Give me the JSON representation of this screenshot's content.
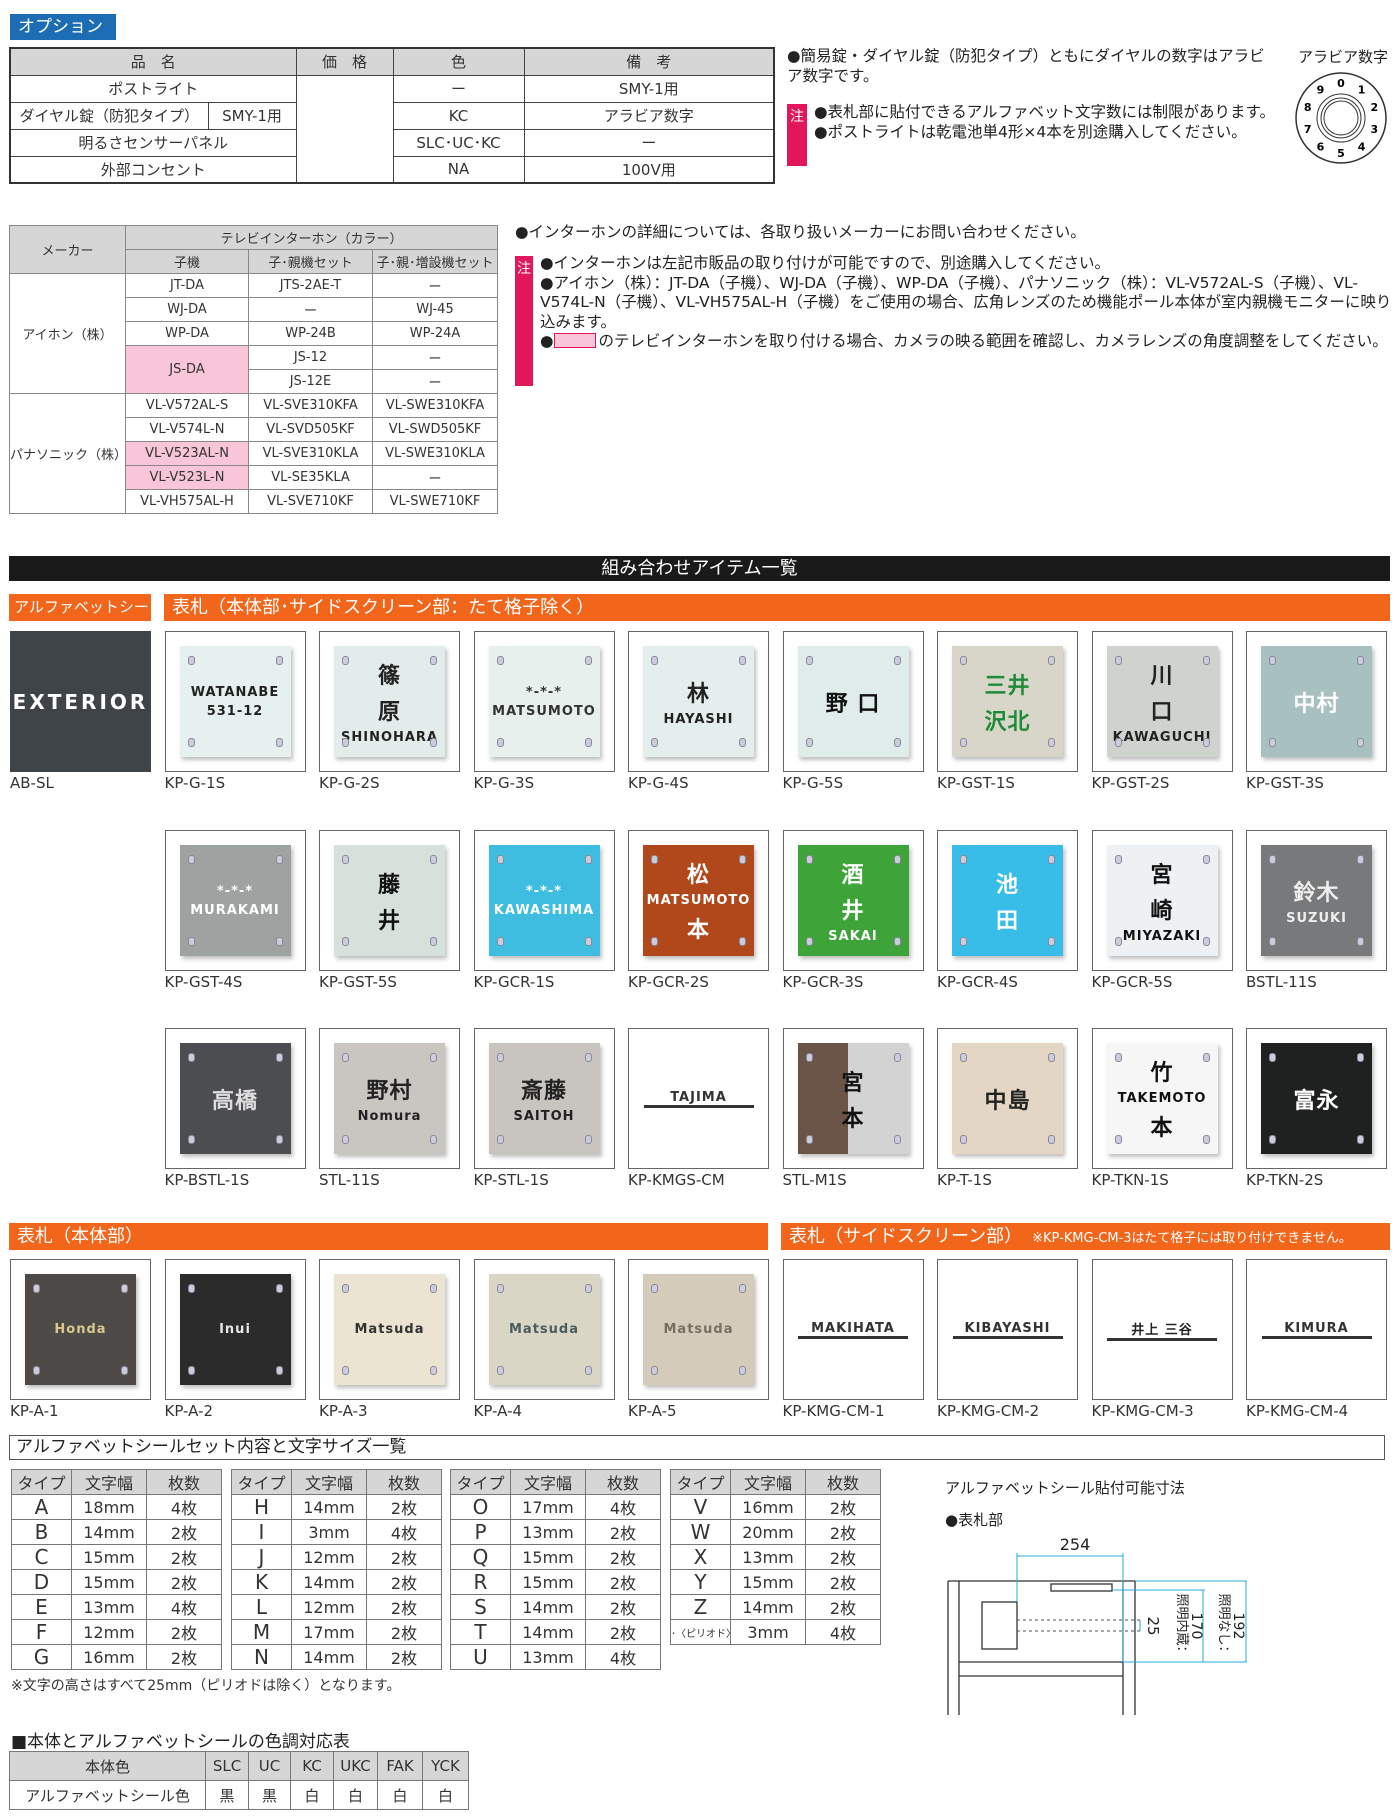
{
  "options": {
    "tag": "オプション",
    "headers": [
      "品　名",
      "価　格",
      "色",
      "備　考"
    ],
    "rows": [
      {
        "name": "ポストライト",
        "color": "ー",
        "note": "SMY-1用"
      },
      {
        "name": "ダイヤル錠（防犯タイプ）",
        "sub": "SMY-1用",
        "color": "KC",
        "note": "アラビア数字"
      },
      {
        "name": "明るさセンサーパネル",
        "color": "SLC･UC･KC",
        "note": "ー"
      },
      {
        "name": "外部コンセント",
        "color": "NA",
        "note": "100V用"
      }
    ],
    "note_main": "●簡易錠・ダイヤル錠（防犯タイプ）ともにダイヤルの数字はアラビア数字です。",
    "caution_label": "注",
    "cautions": [
      "●表札部に貼付できるアルファベット文字数には制限があります。",
      "●ポストライトは乾電池単4形×4本を別途購入してください。"
    ],
    "dial_label": "アラビア数字",
    "dial_digits": [
      "0",
      "1",
      "2",
      "3",
      "4",
      "5",
      "6",
      "7",
      "8",
      "9"
    ]
  },
  "intercom": {
    "maker_header": "メーカー",
    "group_header": "テレビインターホン（カラー）",
    "sub_headers": [
      "子機",
      "子･親機セット",
      "子･親･増設機セット"
    ],
    "makers": [
      "アイホン（株）",
      "パナソニック（株）"
    ],
    "aiphone_rows": [
      [
        "JT-DA",
        "JTS-2AE-T",
        "ー"
      ],
      [
        "WJ-DA",
        "ー",
        "WJ-45"
      ],
      [
        "WP-DA",
        "WP-24B",
        "WP-24A"
      ],
      [
        "JS-DA",
        "JS-12",
        "ー"
      ],
      [
        "",
        "JS-12E",
        "ー"
      ]
    ],
    "panasonic_rows": [
      [
        "VL-V572AL-S",
        "VL-SVE310KFA",
        "VL-SWE310KFA"
      ],
      [
        "VL-V574L-N",
        "VL-SVD505KF",
        "VL-SWD505KF"
      ],
      [
        "VL-V523AL-N",
        "VL-SVE310KLA",
        "VL-SWE310KLA"
      ],
      [
        "VL-V523L-N",
        "VL-SE35KLA",
        "ー"
      ],
      [
        "VL-VH575AL-H",
        "VL-SVE710KF",
        "VL-SWE710KF"
      ]
    ],
    "highlight_color": "#f8c6d8",
    "note_main": "●インターホンの詳細については、各取り扱いメーカーにお問い合わせください。",
    "caution_label": "注",
    "cautions": [
      "●インターホンは左記市販品の取り付けが可能ですので、別途購入してください。",
      "●アイホン（株）：JT-DA（子機）、WJ-DA（子機）、WP-DA（子機）、パナソニック（株）：VL-V572AL-S（子機）、VL-V574L-N（子機）、VL-VH575AL-H（子機）をご使用の場合、広角レンズのため機能ポール本体が室内親機モニターに映り込みます。"
    ],
    "caution_last_prefix": "●",
    "caution_last": "のテレビインターホンを取り付ける場合、カメラの映る範囲を確認し、カメラレンズの角度調整をしてください。"
  },
  "gallery": {
    "title": "組み合わせアイテム一覧",
    "header_alpha": "アルファベットシール",
    "header_main": "表札（本体部･サイドスクリーン部：たて格子除く）",
    "header_body": "表札（本体部）",
    "header_side": "表札（サイドスクリーン部）",
    "header_side_note": "※KP-KMG-CM-3はたて格子には取り付けできません。",
    "accent": "#f2661c",
    "rows": [
      [
        {
          "code": "AB-SL",
          "lines": [
            "EXTERIOR"
          ],
          "bg": "#3f4448",
          "fg": "#ffffff",
          "full": true
        },
        {
          "code": "KP-G-1S",
          "lines": [
            "WATANABE",
            "531-12"
          ],
          "bg": "#e6f0ef",
          "fg": "#222"
        },
        {
          "code": "KP-G-2S",
          "lines": [
            "篠",
            "原",
            "SHINOHARA"
          ],
          "bg": "#e2ecea",
          "fg": "#222"
        },
        {
          "code": "KP-G-3S",
          "lines": [
            "*-*-*",
            "MATSUMOTO"
          ],
          "bg": "#e8f0ee",
          "fg": "#333"
        },
        {
          "code": "KP-G-4S",
          "lines": [
            "林",
            "HAYASHI"
          ],
          "bg": "#e4eeec",
          "fg": "#222"
        },
        {
          "code": "KP-G-5S",
          "lines": [
            "野 口"
          ],
          "bg": "#dfecea",
          "fg": "#111"
        },
        {
          "code": "KP-GST-1S",
          "lines": [
            "三井",
            "沢北"
          ],
          "bg": "#d8d6c8",
          "fg": "#1f8a3a"
        },
        {
          "code": "KP-GST-2S",
          "lines": [
            "川",
            "口",
            "KAWAGUCHI"
          ],
          "bg": "#cfd3cd",
          "fg": "#222"
        },
        {
          "code": "KP-GST-3S",
          "lines": [
            "中村"
          ],
          "bg": "#a9c0c0",
          "fg": "#ffffff"
        }
      ],
      [
        null,
        {
          "code": "KP-GST-4S",
          "lines": [
            "*-*-*",
            "MURAKAMI"
          ],
          "bg": "#9ea3a1",
          "fg": "#ffffff"
        },
        {
          "code": "KP-GST-5S",
          "lines": [
            "藤",
            "井"
          ],
          "bg": "#d7e1dc",
          "fg": "#111"
        },
        {
          "code": "KP-GCR-1S",
          "lines": [
            "*-*-*",
            "KAWASHIMA"
          ],
          "bg": "#3fbde0",
          "fg": "#ffffff"
        },
        {
          "code": "KP-GCR-2S",
          "lines": [
            "松",
            "MATSUMOTO",
            "本"
          ],
          "bg": "#b0481c",
          "fg": "#ffffff"
        },
        {
          "code": "KP-GCR-3S",
          "lines": [
            "酒",
            "井",
            "SAKAI"
          ],
          "bg": "#3ea43a",
          "fg": "#ffffff"
        },
        {
          "code": "KP-GCR-4S",
          "lines": [
            "池",
            "田"
          ],
          "bg": "#38bde8",
          "fg": "#ffffff"
        },
        {
          "code": "KP-GCR-5S",
          "lines": [
            "宮",
            "崎",
            "MIYAZAKI"
          ],
          "bg": "#eef1f3",
          "fg": "#111"
        },
        {
          "code": "BSTL-11S",
          "lines": [
            "鈴木",
            "SUZUKI"
          ],
          "bg": "#77797b",
          "fg": "#eeeeee"
        }
      ],
      [
        null,
        {
          "code": "KP-BSTL-1S",
          "lines": [
            "高橋"
          ],
          "bg": "#4b4d50",
          "fg": "#dddddd"
        },
        {
          "code": "STL-11S",
          "lines": [
            "野村",
            "Nomura"
          ],
          "bg": "#c9c6c2",
          "fg": "#222"
        },
        {
          "code": "KP-STL-1S",
          "lines": [
            "斎藤",
            "SAITOH"
          ],
          "bg": "#c8c5c0",
          "fg": "#222"
        },
        {
          "code": "KP-KMGS-CM",
          "lines": [
            "TAJIMA"
          ],
          "bg": "#ffffff",
          "fg": "#333",
          "bar": true
        },
        {
          "code": "STL-M1S",
          "lines": [
            "宮",
            "本"
          ],
          "bg": "linear-gradient(90deg,#6a5448 0 45%,#d3d3d3 45%)",
          "fg": "#111"
        },
        {
          "code": "KP-T-1S",
          "lines": [
            "中島"
          ],
          "bg": "#e3d6c4",
          "fg": "#222"
        },
        {
          "code": "KP-TKN-1S",
          "lines": [
            "竹",
            "TAKEMOTO",
            "本"
          ],
          "bg": "#f6f6f6",
          "fg": "#111"
        },
        {
          "code": "KP-TKN-2S",
          "lines": [
            "富永"
          ],
          "bg": "#1f2120",
          "fg": "#ffffff"
        }
      ],
      [
        {
          "code": "KP-A-1",
          "lines": [
            "Honda"
          ],
          "bg": "#4d4a47",
          "fg": "#d8c890"
        },
        {
          "code": "KP-A-2",
          "lines": [
            "Inui"
          ],
          "bg": "#2b2b2b",
          "fg": "#e6e6e6"
        },
        {
          "code": "KP-A-3",
          "lines": [
            "Matsuda"
          ],
          "bg": "#ebe4d2",
          "fg": "#333"
        },
        {
          "code": "KP-A-4",
          "lines": [
            "Matsuda"
          ],
          "bg": "#d9d6c6",
          "fg": "#4b5b5e"
        },
        {
          "code": "KP-A-5",
          "lines": [
            "Matsuda"
          ],
          "bg": "#d4cbbb",
          "fg": "#7a6e60"
        },
        {
          "code": "KP-KMG-CM-1",
          "lines": [
            "MAKIHATA"
          ],
          "bg": "#ffffff",
          "fg": "#333",
          "bar": true
        },
        {
          "code": "KP-KMG-CM-2",
          "lines": [
            "KIBAYASHI"
          ],
          "bg": "#ffffff",
          "fg": "#333",
          "bar": true
        },
        {
          "code": "KP-KMG-CM-3",
          "lines": [
            "井上 三谷"
          ],
          "bg": "#ffffff",
          "fg": "#222",
          "bar": true
        },
        {
          "code": "KP-KMG-CM-4",
          "lines": [
            "KIMURA"
          ],
          "bg": "#ffffff",
          "fg": "#333",
          "bar": true
        }
      ]
    ]
  },
  "alphabet_sets": {
    "title": "アルファベットシールセット内容と文字サイズ一覧",
    "headers": [
      "タイプ",
      "文字幅",
      "枚数"
    ],
    "tables": [
      [
        [
          "A",
          "18mm",
          "4枚"
        ],
        [
          "B",
          "14mm",
          "2枚"
        ],
        [
          "C",
          "15mm",
          "2枚"
        ],
        [
          "D",
          "15mm",
          "2枚"
        ],
        [
          "E",
          "13mm",
          "4枚"
        ],
        [
          "F",
          "12mm",
          "2枚"
        ],
        [
          "G",
          "16mm",
          "2枚"
        ]
      ],
      [
        [
          "H",
          "14mm",
          "2枚"
        ],
        [
          "I",
          "3mm",
          "4枚"
        ],
        [
          "J",
          "12mm",
          "2枚"
        ],
        [
          "K",
          "14mm",
          "2枚"
        ],
        [
          "L",
          "12mm",
          "2枚"
        ],
        [
          "M",
          "17mm",
          "2枚"
        ],
        [
          "N",
          "14mm",
          "2枚"
        ]
      ],
      [
        [
          "O",
          "17mm",
          "4枚"
        ],
        [
          "P",
          "13mm",
          "2枚"
        ],
        [
          "Q",
          "15mm",
          "2枚"
        ],
        [
          "R",
          "15mm",
          "2枚"
        ],
        [
          "S",
          "14mm",
          "2枚"
        ],
        [
          "T",
          "14mm",
          "2枚"
        ],
        [
          "U",
          "13mm",
          "4枚"
        ]
      ],
      [
        [
          "V",
          "16mm",
          "2枚"
        ],
        [
          "W",
          "20mm",
          "2枚"
        ],
        [
          "X",
          "13mm",
          "2枚"
        ],
        [
          "Y",
          "15mm",
          "2枚"
        ],
        [
          "Z",
          "14mm",
          "2枚"
        ],
        [
          "･〈ピリオド〉",
          "3mm",
          "4枚"
        ]
      ]
    ],
    "footnote": "※文字の高さはすべて25mm（ピリオドは除く）となります。"
  },
  "diagram": {
    "title": "アルファベットシール貼付可能寸法",
    "subtitle": "●表札部",
    "dim_width": "254",
    "dim_letter": "25",
    "dim_light_label": "照明内蔵：",
    "dim_light": "170",
    "dim_nolight_label": "照明なし：",
    "dim_nolight": "192",
    "dim_color": "#29a8d8"
  },
  "color_table": {
    "title": "■本体とアルファベットシールの色調対応表",
    "row_header": "本体色",
    "body_colors": [
      "SLC",
      "UC",
      "KC",
      "UKC",
      "FAK",
      "YCK"
    ],
    "seal_label": "アルファベットシール色",
    "seal_colors": [
      "黒",
      "黒",
      "白",
      "白",
      "白",
      "白"
    ]
  }
}
